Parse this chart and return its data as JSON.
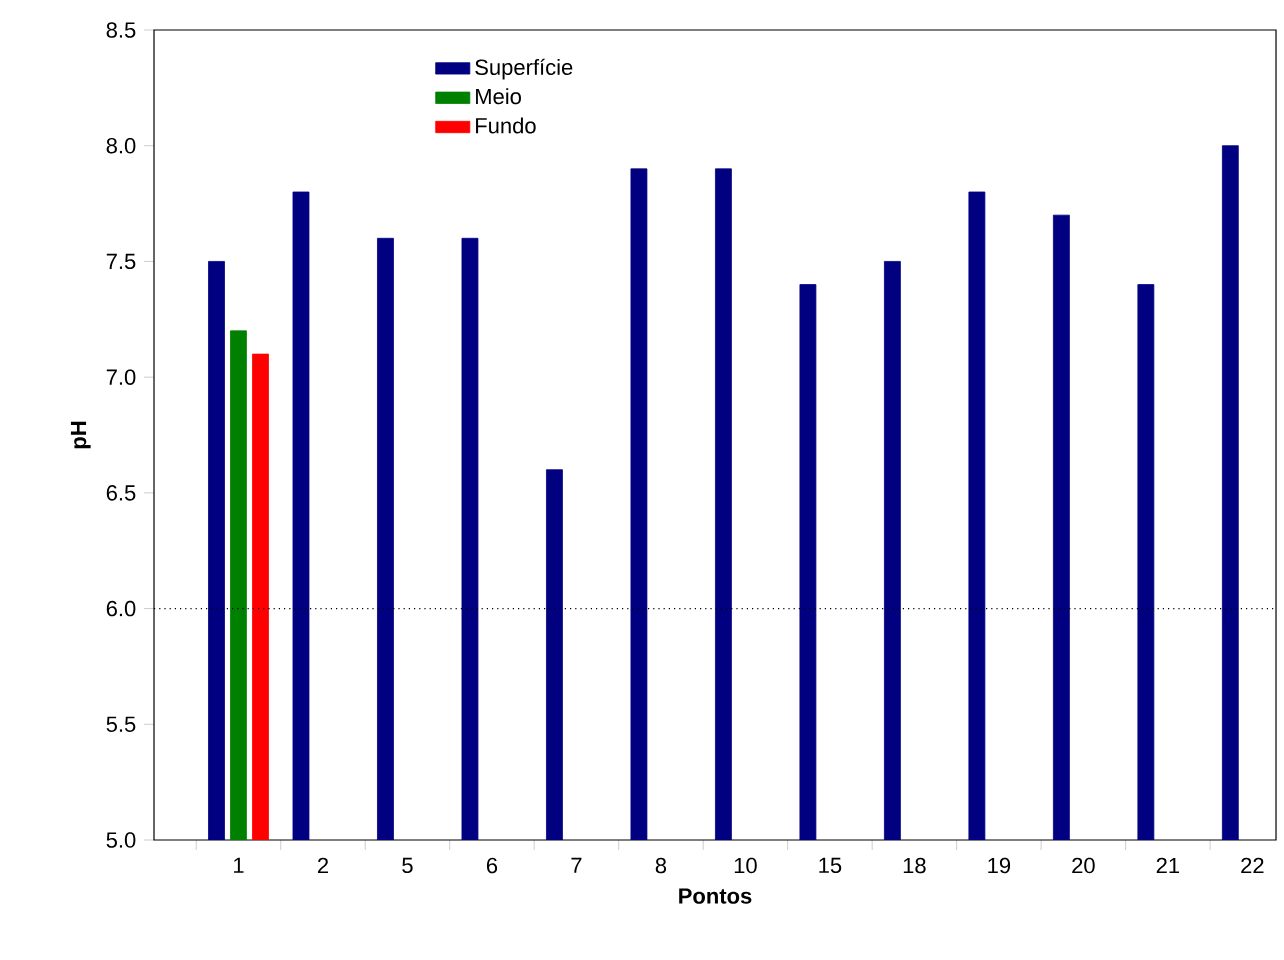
{
  "chart_data": {
    "type": "bar",
    "xlabel": "Pontos",
    "ylabel": "pH",
    "categories": [
      "1",
      "2",
      "5",
      "6",
      "7",
      "8",
      "10",
      "15",
      "18",
      "19",
      "20",
      "21",
      "22"
    ],
    "series": [
      {
        "name": "Superfície",
        "color": "#000080",
        "values": [
          7.5,
          7.8,
          7.6,
          7.6,
          6.6,
          7.9,
          7.9,
          7.4,
          7.5,
          7.8,
          7.7,
          7.4,
          8.0
        ]
      },
      {
        "name": "Meio",
        "color": "#008000",
        "values": [
          7.2,
          null,
          null,
          null,
          null,
          null,
          null,
          null,
          null,
          null,
          null,
          null,
          null
        ]
      },
      {
        "name": "Fundo",
        "color": "#ff0000",
        "values": [
          7.1,
          null,
          null,
          null,
          null,
          null,
          null,
          null,
          null,
          null,
          null,
          null,
          null
        ]
      }
    ],
    "ylim": [
      5.0,
      8.5
    ],
    "yticks": [
      {
        "value": 5.0,
        "label": "5.0"
      },
      {
        "value": 5.5,
        "label": "5.5"
      },
      {
        "value": 6.0,
        "label": "6.0"
      },
      {
        "value": 6.5,
        "label": "6.5"
      },
      {
        "value": 7.0,
        "label": "7.0"
      },
      {
        "value": 7.5,
        "label": "7.5"
      },
      {
        "value": 8.0,
        "label": "8.0"
      },
      {
        "value": 8.5,
        "label": "8.5"
      }
    ],
    "ref_lines": [
      {
        "axis": "y",
        "value": 6.0,
        "line_style": "dotted"
      }
    ],
    "grid": false,
    "legend": "top left"
  }
}
